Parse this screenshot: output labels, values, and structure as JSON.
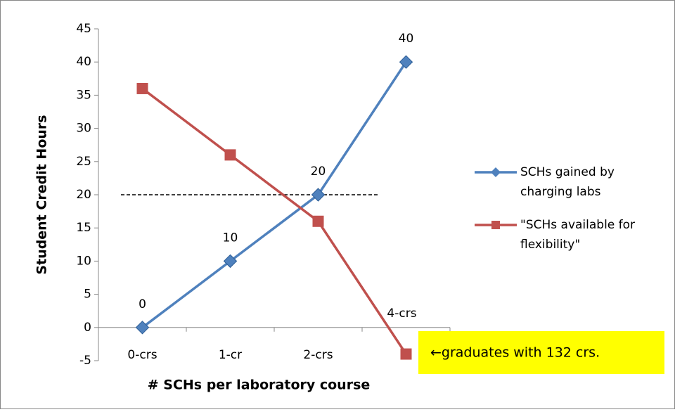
{
  "chart_data": {
    "type": "line",
    "categories": [
      "0-crs",
      "1-cr",
      "2-crs",
      "4-crs"
    ],
    "series": [
      {
        "name": "SCHs gained by charging labs",
        "color": "#4f81bd",
        "marker": "diamond",
        "values": [
          0,
          10,
          20,
          40
        ],
        "data_labels": true
      },
      {
        "name": "\"SCHs available for flexibility\"",
        "color": "#c0504d",
        "marker": "square",
        "values": [
          36,
          26,
          16,
          -4
        ],
        "data_labels": false
      }
    ],
    "ylim": [
      -5,
      45
    ],
    "yticks": [
      -5,
      0,
      5,
      10,
      15,
      20,
      25,
      30,
      35,
      40,
      45
    ],
    "y_label": "Student Credit Hours",
    "x_label": "# SCHs per laboratory course",
    "reference_line": 20,
    "annotation": "←graduates with 132 crs.",
    "legend": "right",
    "grid": false
  }
}
